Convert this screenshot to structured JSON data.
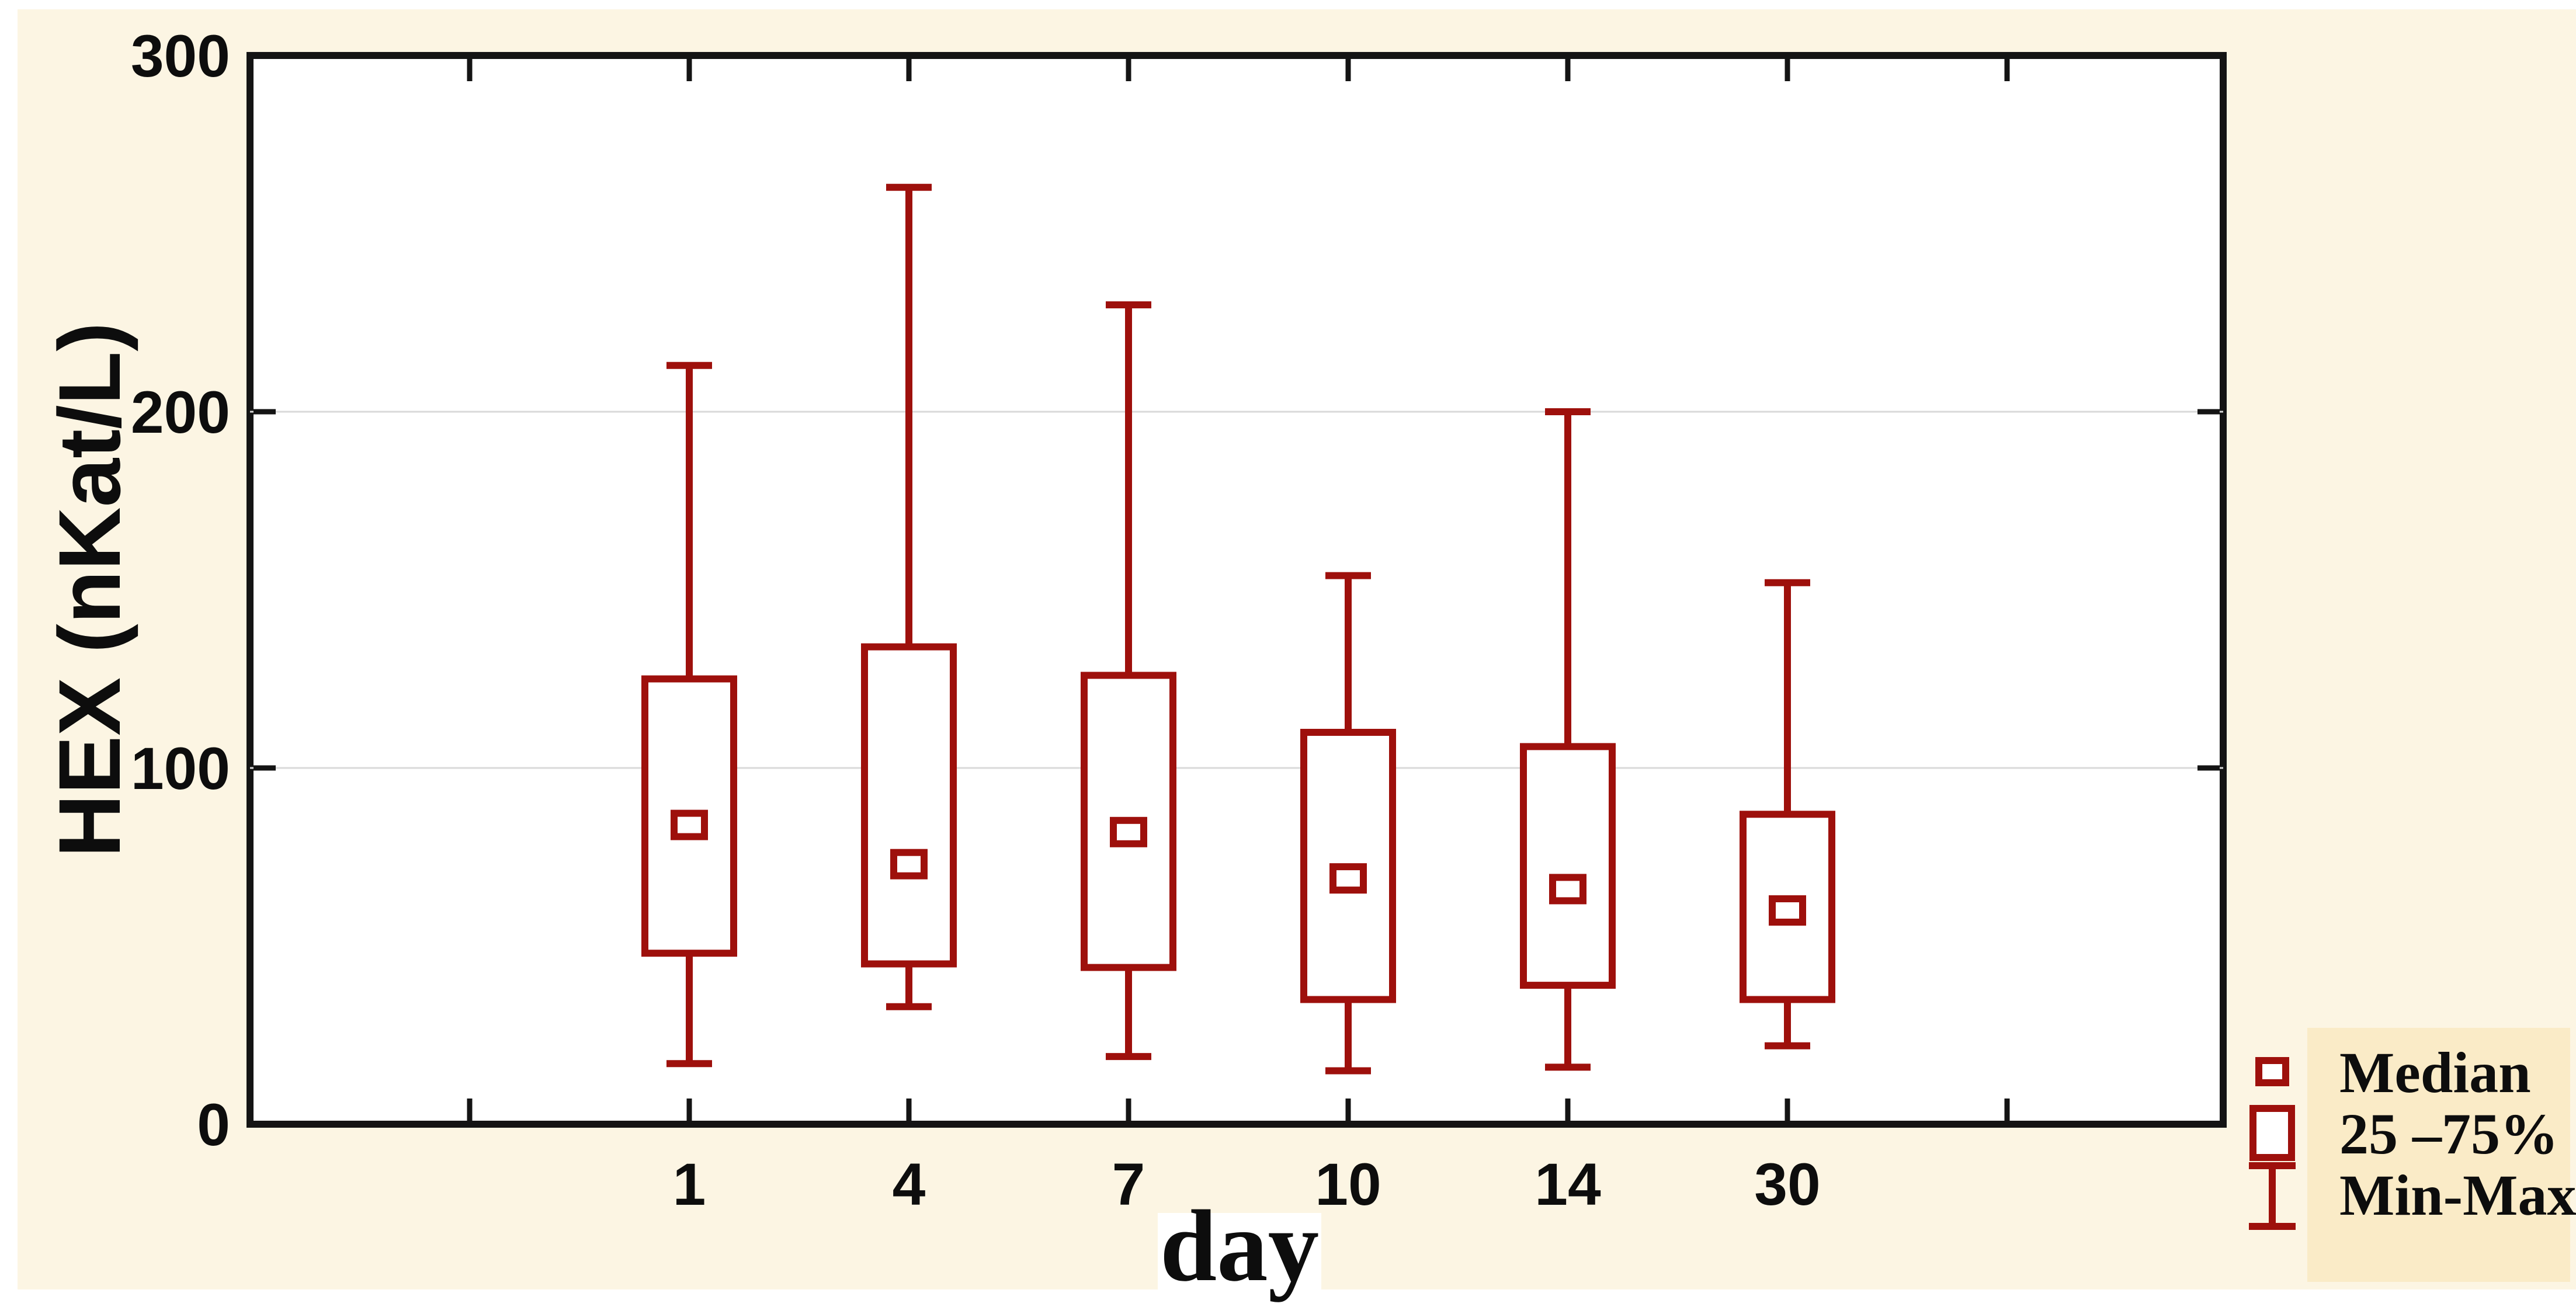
{
  "chart_data": {
    "type": "box",
    "title": "",
    "xlabel": "day",
    "ylabel": "HEX (nKat/L)",
    "categories": [
      "1",
      "4",
      "7",
      "10",
      "14",
      "30"
    ],
    "ylim": [
      0,
      300
    ],
    "y_ticks": [
      0,
      100,
      200,
      300
    ],
    "grid_values": [
      100,
      200
    ],
    "grid_on": true,
    "legend_position": "bottom-right",
    "series": [
      {
        "day": "1",
        "min": 17,
        "q1": 48,
        "median": 84,
        "q3": 125,
        "max": 213
      },
      {
        "day": "4",
        "min": 33,
        "q1": 45,
        "median": 73,
        "q3": 134,
        "max": 263
      },
      {
        "day": "7",
        "min": 19,
        "q1": 44,
        "median": 82,
        "q3": 126,
        "max": 230
      },
      {
        "day": "10",
        "min": 15,
        "q1": 35,
        "median": 69,
        "q3": 110,
        "max": 154
      },
      {
        "day": "14",
        "min": 16,
        "q1": 39,
        "median": 66,
        "q3": 106,
        "max": 200
      },
      {
        "day": "30",
        "min": 22,
        "q1": 35,
        "median": 60,
        "q3": 87,
        "max": 152
      }
    ],
    "legend": [
      {
        "symbol": "median-square",
        "label": "Median"
      },
      {
        "symbol": "iqr-box",
        "label": "25 –75%"
      },
      {
        "symbol": "min-max-whisker",
        "label": "Min-Max"
      }
    ]
  },
  "colors": {
    "page_margin": "#ffffff",
    "canvas_cream": "#fcf5e3",
    "plot_background": "#ffffff",
    "axis_black": "#141414",
    "gridline_gray": "#d9d9d9",
    "box_red": "#9e100c",
    "legend_panel": "#faebc7",
    "text_black": "#0d0d0d"
  }
}
